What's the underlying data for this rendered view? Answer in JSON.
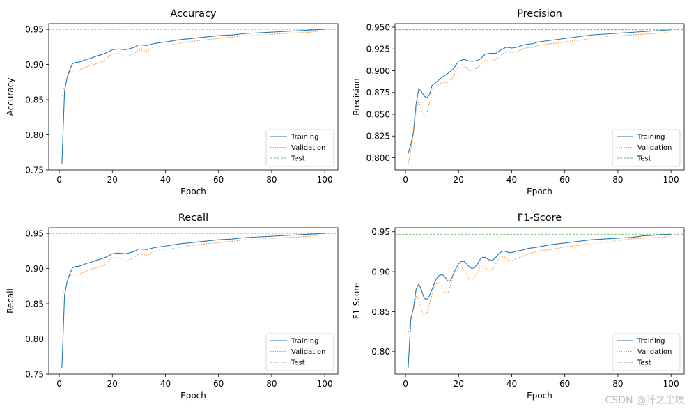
{
  "chart_data": [
    {
      "type": "line",
      "title": "Accuracy",
      "xlabel": "Epoch",
      "ylabel": "Accuracy",
      "xlim": [
        -3.95,
        104.95
      ],
      "ylim": [
        0.75,
        0.958
      ],
      "xticks": [
        0,
        20,
        40,
        60,
        80,
        100
      ],
      "yticks": [
        0.75,
        0.8,
        0.85,
        0.9,
        0.95
      ],
      "ytick_decimals": 2,
      "legend_position": "lower-right",
      "series": [
        {
          "name": "Training",
          "color": "#1f77b4",
          "style": "solid",
          "x": [
            1,
            2,
            3,
            4,
            5,
            6,
            7,
            8,
            10,
            12,
            14,
            16,
            18,
            20,
            22,
            25,
            28,
            30,
            33,
            36,
            40,
            45,
            50,
            55,
            60,
            65,
            70,
            75,
            80,
            85,
            90,
            95,
            100
          ],
          "y": [
            0.759,
            0.862,
            0.882,
            0.893,
            0.901,
            0.903,
            0.903,
            0.904,
            0.907,
            0.909,
            0.912,
            0.914,
            0.917,
            0.921,
            0.922,
            0.921,
            0.924,
            0.928,
            0.927,
            0.93,
            0.932,
            0.935,
            0.937,
            0.939,
            0.941,
            0.942,
            0.944,
            0.945,
            0.946,
            0.947,
            0.948,
            0.949,
            0.95
          ]
        },
        {
          "name": "Validation",
          "color": "#ff7f0e",
          "style": "dotted",
          "x": [
            1,
            2,
            3,
            4,
            5,
            6,
            7,
            8,
            10,
            12,
            14,
            16,
            18,
            20,
            22,
            25,
            28,
            30,
            33,
            36,
            40,
            45,
            50,
            55,
            60,
            65,
            70,
            75,
            80,
            85,
            90,
            95,
            100
          ],
          "y": [
            0.852,
            0.872,
            0.882,
            0.89,
            0.892,
            0.89,
            0.889,
            0.893,
            0.896,
            0.899,
            0.901,
            0.903,
            0.909,
            0.916,
            0.916,
            0.911,
            0.915,
            0.921,
            0.919,
            0.925,
            0.927,
            0.93,
            0.933,
            0.935,
            0.937,
            0.939,
            0.941,
            0.942,
            0.943,
            0.944,
            0.945,
            0.946,
            0.948
          ]
        },
        {
          "name": "Test",
          "color": "#2ca02c",
          "style": "dashed",
          "x": [
            -3.95,
            104.95
          ],
          "y": [
            0.95,
            0.95
          ]
        }
      ]
    },
    {
      "type": "line",
      "title": "Precision",
      "xlabel": "Epoch",
      "ylabel": "Precision",
      "xlim": [
        -3.95,
        104.95
      ],
      "ylim": [
        0.786,
        0.954
      ],
      "xticks": [
        0,
        20,
        40,
        60,
        80,
        100
      ],
      "yticks": [
        0.8,
        0.825,
        0.85,
        0.875,
        0.9,
        0.925,
        0.95
      ],
      "ytick_decimals": 3,
      "legend_position": "lower-right",
      "series": [
        {
          "name": "Training",
          "color": "#1f77b4",
          "style": "solid",
          "x": [
            1,
            2,
            3,
            4,
            5,
            6,
            7,
            8,
            9,
            10,
            12,
            14,
            16,
            18,
            20,
            22,
            24,
            26,
            28,
            30,
            32,
            34,
            36,
            38,
            40,
            42,
            45,
            48,
            50,
            55,
            60,
            65,
            70,
            75,
            80,
            85,
            90,
            95,
            100
          ],
          "y": [
            0.805,
            0.815,
            0.83,
            0.862,
            0.879,
            0.876,
            0.871,
            0.869,
            0.872,
            0.883,
            0.888,
            0.893,
            0.897,
            0.902,
            0.911,
            0.913,
            0.911,
            0.911,
            0.913,
            0.919,
            0.92,
            0.92,
            0.924,
            0.927,
            0.926,
            0.927,
            0.93,
            0.931,
            0.933,
            0.935,
            0.937,
            0.939,
            0.941,
            0.942,
            0.943,
            0.944,
            0.945,
            0.946,
            0.947
          ]
        },
        {
          "name": "Validation",
          "color": "#ff7f0e",
          "style": "dotted",
          "x": [
            1,
            2,
            3,
            4,
            5,
            6,
            7,
            8,
            9,
            10,
            12,
            14,
            16,
            18,
            20,
            22,
            24,
            26,
            28,
            30,
            32,
            34,
            36,
            38,
            40,
            42,
            45,
            48,
            50,
            55,
            60,
            65,
            70,
            75,
            80,
            85,
            90,
            95,
            100
          ],
          "y": [
            0.793,
            0.808,
            0.827,
            0.855,
            0.866,
            0.854,
            0.847,
            0.851,
            0.863,
            0.877,
            0.884,
            0.887,
            0.886,
            0.893,
            0.907,
            0.907,
            0.9,
            0.901,
            0.906,
            0.912,
            0.911,
            0.913,
            0.918,
            0.922,
            0.921,
            0.922,
            0.926,
            0.927,
            0.929,
            0.931,
            0.933,
            0.935,
            0.937,
            0.939,
            0.94,
            0.941,
            0.942,
            0.943,
            0.944
          ]
        },
        {
          "name": "Test",
          "color": "#2ca02c",
          "style": "dashed",
          "x": [
            -3.95,
            104.95
          ],
          "y": [
            0.947,
            0.947
          ]
        }
      ]
    },
    {
      "type": "line",
      "title": "Recall",
      "xlabel": "Epoch",
      "ylabel": "Recall",
      "xlim": [
        -3.95,
        104.95
      ],
      "ylim": [
        0.75,
        0.958
      ],
      "xticks": [
        0,
        20,
        40,
        60,
        80,
        100
      ],
      "yticks": [
        0.75,
        0.8,
        0.85,
        0.9,
        0.95
      ],
      "ytick_decimals": 2,
      "legend_position": "lower-right",
      "series": [
        {
          "name": "Training",
          "color": "#1f77b4",
          "style": "solid",
          "x": [
            1,
            2,
            3,
            4,
            5,
            6,
            7,
            8,
            10,
            12,
            14,
            16,
            18,
            20,
            22,
            25,
            28,
            30,
            33,
            36,
            40,
            45,
            50,
            55,
            60,
            65,
            70,
            75,
            80,
            85,
            90,
            95,
            100
          ],
          "y": [
            0.759,
            0.862,
            0.882,
            0.893,
            0.901,
            0.903,
            0.903,
            0.904,
            0.907,
            0.909,
            0.912,
            0.914,
            0.917,
            0.921,
            0.922,
            0.921,
            0.924,
            0.928,
            0.927,
            0.93,
            0.932,
            0.935,
            0.937,
            0.939,
            0.941,
            0.942,
            0.944,
            0.945,
            0.946,
            0.947,
            0.948,
            0.949,
            0.95
          ]
        },
        {
          "name": "Validation",
          "color": "#ff7f0e",
          "style": "dotted",
          "x": [
            1,
            2,
            3,
            4,
            5,
            6,
            7,
            8,
            10,
            12,
            14,
            16,
            18,
            20,
            22,
            25,
            28,
            30,
            33,
            36,
            40,
            45,
            50,
            55,
            60,
            65,
            70,
            75,
            80,
            85,
            90,
            95,
            100
          ],
          "y": [
            0.852,
            0.872,
            0.882,
            0.89,
            0.892,
            0.89,
            0.889,
            0.893,
            0.896,
            0.899,
            0.901,
            0.903,
            0.909,
            0.916,
            0.916,
            0.911,
            0.915,
            0.921,
            0.919,
            0.925,
            0.927,
            0.93,
            0.933,
            0.935,
            0.937,
            0.939,
            0.941,
            0.942,
            0.943,
            0.944,
            0.945,
            0.946,
            0.948
          ]
        },
        {
          "name": "Test",
          "color": "#2ca02c",
          "style": "dashed",
          "x": [
            -3.95,
            104.95
          ],
          "y": [
            0.95,
            0.95
          ]
        }
      ]
    },
    {
      "type": "line",
      "title": "F1-Score",
      "xlabel": "Epoch",
      "ylabel": "F1-Score",
      "xlim": [
        -3.95,
        104.95
      ],
      "ylim": [
        0.772,
        0.955
      ],
      "xticks": [
        0,
        20,
        40,
        60,
        80,
        100
      ],
      "yticks": [
        0.8,
        0.85,
        0.9,
        0.95
      ],
      "ytick_decimals": 2,
      "legend_position": "lower-right",
      "series": [
        {
          "name": "Training",
          "color": "#1f77b4",
          "style": "solid",
          "x": [
            1,
            2,
            3,
            4,
            5,
            6,
            7,
            8,
            9,
            10,
            11,
            12,
            13,
            14,
            15,
            16,
            17,
            18,
            19,
            20,
            21,
            22,
            23,
            24,
            25,
            26,
            27,
            28,
            29,
            30,
            31,
            32,
            33,
            34,
            35,
            36,
            37,
            38,
            39,
            40,
            42,
            44,
            46,
            48,
            50,
            55,
            60,
            65,
            70,
            75,
            80,
            85,
            90,
            95,
            100
          ],
          "y": [
            0.78,
            0.84,
            0.855,
            0.878,
            0.885,
            0.877,
            0.867,
            0.865,
            0.87,
            0.878,
            0.887,
            0.893,
            0.896,
            0.896,
            0.893,
            0.888,
            0.889,
            0.897,
            0.904,
            0.91,
            0.913,
            0.913,
            0.91,
            0.906,
            0.904,
            0.905,
            0.909,
            0.915,
            0.918,
            0.918,
            0.916,
            0.914,
            0.915,
            0.918,
            0.922,
            0.925,
            0.926,
            0.925,
            0.924,
            0.924,
            0.926,
            0.927,
            0.929,
            0.93,
            0.931,
            0.934,
            0.936,
            0.938,
            0.94,
            0.941,
            0.942,
            0.943,
            0.945,
            0.946,
            0.947
          ]
        },
        {
          "name": "Validation",
          "color": "#ff7f0e",
          "style": "dotted",
          "x": [
            1,
            2,
            3,
            4,
            5,
            6,
            7,
            8,
            9,
            10,
            11,
            12,
            13,
            14,
            15,
            16,
            17,
            18,
            19,
            20,
            21,
            22,
            23,
            24,
            25,
            26,
            27,
            28,
            29,
            30,
            31,
            32,
            33,
            34,
            35,
            36,
            37,
            38,
            39,
            40,
            42,
            44,
            46,
            48,
            50,
            55,
            60,
            65,
            70,
            75,
            80,
            85,
            90,
            95,
            100
          ],
          "y": [
            0.822,
            0.843,
            0.853,
            0.869,
            0.866,
            0.852,
            0.845,
            0.848,
            0.859,
            0.872,
            0.883,
            0.887,
            0.885,
            0.879,
            0.873,
            0.874,
            0.884,
            0.893,
            0.9,
            0.905,
            0.906,
            0.902,
            0.896,
            0.89,
            0.889,
            0.893,
            0.899,
            0.905,
            0.908,
            0.906,
            0.902,
            0.901,
            0.904,
            0.91,
            0.915,
            0.918,
            0.919,
            0.917,
            0.914,
            0.914,
            0.917,
            0.919,
            0.922,
            0.924,
            0.926,
            0.928,
            0.931,
            0.933,
            0.935,
            0.937,
            0.939,
            0.941,
            0.942,
            0.943,
            0.944
          ]
        },
        {
          "name": "Test",
          "color": "#2ca02c",
          "style": "dashed",
          "x": [
            -3.95,
            104.95
          ],
          "y": [
            0.947,
            0.947
          ]
        }
      ]
    }
  ],
  "watermark": "CSDN @阡之尘埃"
}
